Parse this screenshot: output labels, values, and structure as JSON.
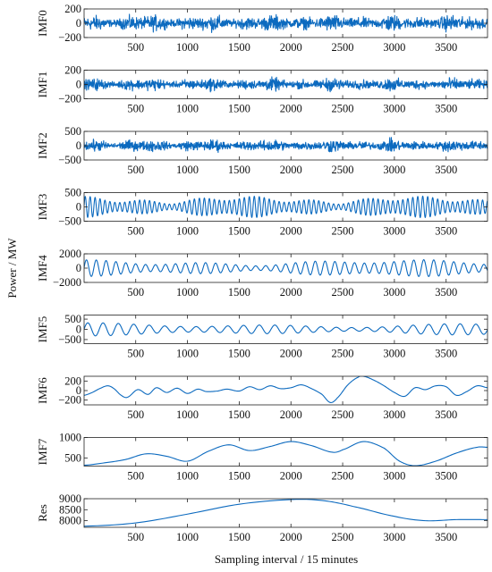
{
  "figure": {
    "ylabel": "Power / MW",
    "xlabel": "Sampling interval / 15 minutes"
  },
  "chart_data": {
    "type": "line",
    "line_color": "#0c6abf",
    "xlim": [
      1,
      3900
    ],
    "x_ticks": [
      500,
      1000,
      1500,
      2000,
      2500,
      3000,
      3500
    ],
    "x_tick_labels": [
      "500",
      "1000",
      "1500",
      "2000",
      "2500",
      "3000",
      "3500"
    ],
    "grid": false,
    "panels": [
      {
        "name": "IMF0",
        "ylim": [
          -200,
          200
        ],
        "yticks": [
          200,
          0,
          -200
        ],
        "ytick_labels": [
          "200",
          "0",
          "−200"
        ],
        "signal": {
          "kind": "noise",
          "amplitude": 120
        }
      },
      {
        "name": "IMF1",
        "ylim": [
          -200,
          200
        ],
        "yticks": [
          200,
          0,
          -200
        ],
        "ytick_labels": [
          "200",
          "0",
          "−200"
        ],
        "signal": {
          "kind": "noise",
          "amplitude": 95
        }
      },
      {
        "name": "IMF2",
        "ylim": [
          -500,
          500
        ],
        "yticks": [
          500,
          0,
          -500
        ],
        "ytick_labels": [
          "500",
          "0",
          "−500"
        ],
        "signal": {
          "kind": "noise",
          "amplitude": 230
        }
      },
      {
        "name": "IMF3",
        "ylim": [
          -500,
          500
        ],
        "yticks": [
          500,
          0,
          -500
        ],
        "ytick_labels": [
          "500",
          "0",
          "−500"
        ],
        "signal": {
          "kind": "oscillation",
          "period": 48,
          "amplitude": 380
        }
      },
      {
        "name": "IMF4",
        "ylim": [
          -2000,
          2000
        ],
        "yticks": [
          2000,
          0,
          -2000
        ],
        "ytick_labels": [
          "2000",
          "0",
          "−2000"
        ],
        "signal": {
          "kind": "oscillation",
          "period": 96,
          "amplitude": 1200
        }
      },
      {
        "name": "IMF5",
        "ylim": [
          -700,
          700
        ],
        "yticks": [
          500,
          0,
          -500
        ],
        "ytick_labels": [
          "500",
          "0",
          "−500"
        ],
        "signal": {
          "kind": "oscillation",
          "period": 150,
          "amplitude": 330
        }
      },
      {
        "name": "IMF6",
        "ylim": [
          -300,
          300
        ],
        "yticks": [
          200,
          0,
          -200
        ],
        "ytick_labels": [
          "200",
          "0",
          "−200"
        ],
        "signal": {
          "kind": "curve",
          "x": [
            1,
            80,
            150,
            230,
            290,
            360,
            420,
            520,
            620,
            700,
            800,
            900,
            1000,
            1100,
            1180,
            1290,
            1380,
            1500,
            1600,
            1700,
            1800,
            1900,
            2000,
            2100,
            2200,
            2300,
            2380,
            2450,
            2550,
            2650,
            2700,
            2800,
            2900,
            3000,
            3100,
            3200,
            3300,
            3400,
            3500,
            3600,
            3700,
            3800,
            3900
          ],
          "y": [
            -100,
            -40,
            40,
            100,
            40,
            -100,
            -140,
            20,
            -80,
            60,
            -40,
            50,
            -60,
            30,
            -20,
            -10,
            30,
            -10,
            80,
            20,
            100,
            40,
            60,
            120,
            40,
            -80,
            -250,
            -150,
            120,
            280,
            300,
            220,
            100,
            -40,
            -120,
            60,
            20,
            100,
            80,
            -100,
            -20,
            100,
            60
          ]
        }
      },
      {
        "name": "IMF7",
        "ylim": [
          300,
          1000
        ],
        "yticks": [
          1000,
          500
        ],
        "ytick_labels": [
          "1000",
          "500"
        ],
        "signal": {
          "kind": "curve",
          "x": [
            1,
            200,
            400,
            600,
            800,
            1000,
            1200,
            1400,
            1600,
            1800,
            2000,
            2200,
            2400,
            2500,
            2700,
            2900,
            3050,
            3200,
            3400,
            3600,
            3800,
            3900
          ],
          "y": [
            320,
            380,
            460,
            600,
            540,
            420,
            660,
            820,
            680,
            780,
            900,
            800,
            640,
            700,
            900,
            740,
            420,
            310,
            420,
            620,
            760,
            760
          ]
        }
      },
      {
        "name": "Res",
        "ylim": [
          7700,
          9000
        ],
        "yticks": [
          9000,
          8500,
          8000
        ],
        "ytick_labels": [
          "9000",
          "8500",
          "8000"
        ],
        "signal": {
          "kind": "curve",
          "x": [
            1,
            500,
            1000,
            1500,
            2000,
            2300,
            2600,
            3000,
            3300,
            3600,
            3900
          ],
          "y": [
            7750,
            7900,
            8300,
            8750,
            8960,
            8920,
            8650,
            8200,
            8000,
            8050,
            8050
          ]
        }
      }
    ]
  }
}
